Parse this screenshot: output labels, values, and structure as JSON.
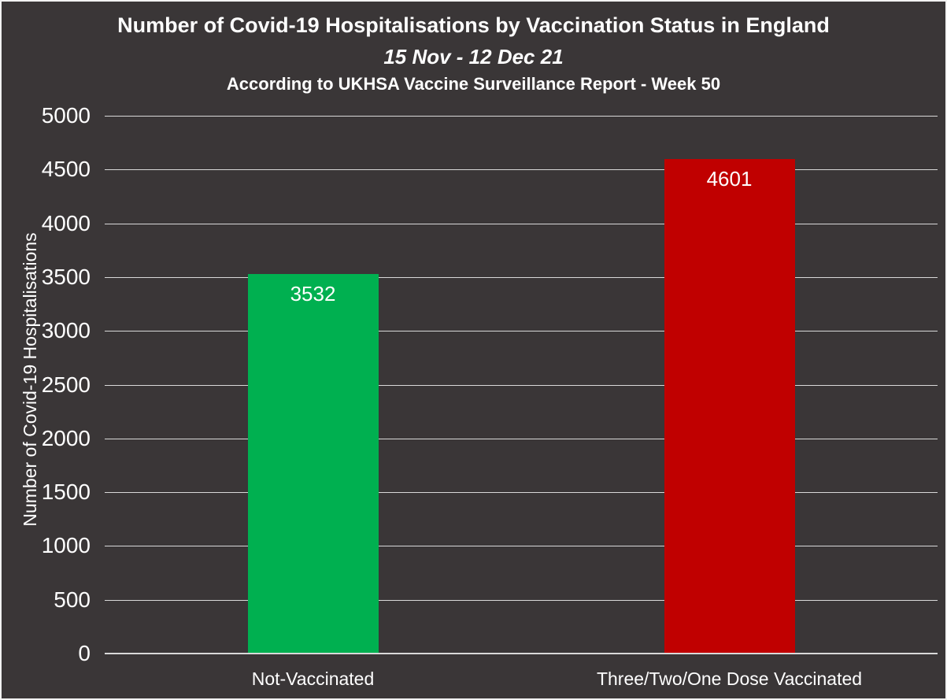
{
  "frame": {
    "background": "#3a3637",
    "border_color": "#f2f2f2"
  },
  "chart_data": {
    "type": "bar",
    "title": "Number of Covid-19 Hospitalisations by Vaccination Status in England",
    "subtitle": "15 Nov - 12 Dec 21",
    "source_line": "According to UKHSA Vaccine Surveillance Report - Week 50",
    "categories": [
      "Not-Vaccinated",
      "Three/Two/One Dose Vaccinated"
    ],
    "values": [
      3532,
      4601
    ],
    "data_labels": [
      "3532",
      "4601"
    ],
    "bar_colors": [
      "#00B050",
      "#C00000"
    ],
    "ylabel": "Number of Covid-19 Hospitalisations",
    "xlabel": "",
    "ylim": [
      0,
      5000
    ],
    "ytick_step": 500,
    "ytick_labels": [
      "0",
      "500",
      "1000",
      "1500",
      "2000",
      "2500",
      "3000",
      "3500",
      "4000",
      "4500",
      "5000"
    ],
    "grid": true,
    "gridline_color": "#d9d9d9",
    "axis_line_color": "#d9d9d9",
    "text_color": "#ffffff",
    "legend": null
  }
}
